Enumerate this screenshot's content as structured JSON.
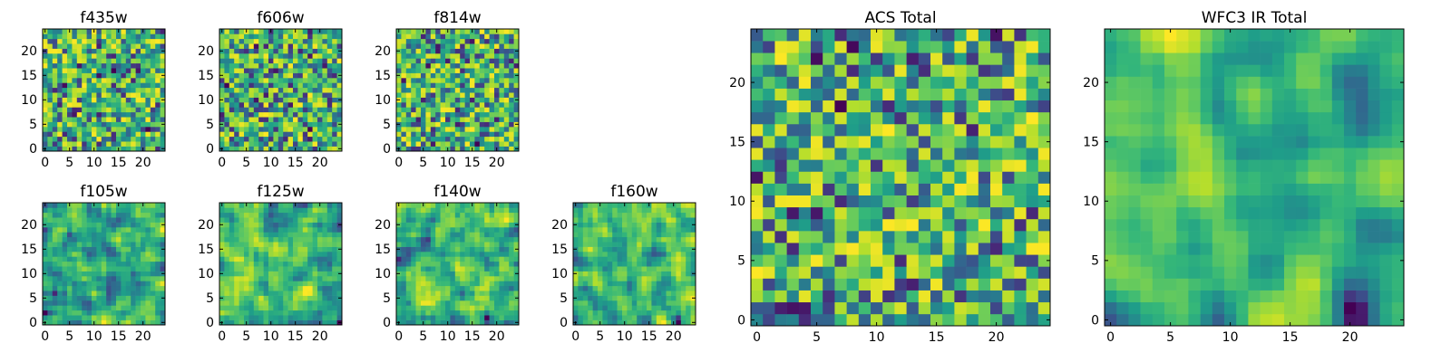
{
  "chart_data": [
    {
      "type": "heatmap",
      "title": "f435w",
      "seed": 11,
      "blur": 0,
      "x_ticks": [
        "0",
        "5",
        "10",
        "15",
        "20"
      ],
      "y_ticks": [
        "0",
        "5",
        "10",
        "15",
        "20"
      ],
      "xlim": [
        -0.5,
        24.5
      ],
      "ylim": [
        -0.5,
        24.5
      ],
      "grid": false,
      "colormap": "viridis"
    },
    {
      "type": "heatmap",
      "title": "f606w",
      "seed": 23,
      "blur": 0,
      "x_ticks": [
        "0",
        "5",
        "10",
        "15",
        "20"
      ],
      "y_ticks": [
        "0",
        "5",
        "10",
        "15",
        "20"
      ],
      "xlim": [
        -0.5,
        24.5
      ],
      "ylim": [
        -0.5,
        24.5
      ],
      "grid": false,
      "colormap": "viridis"
    },
    {
      "type": "heatmap",
      "title": "f814w",
      "seed": 37,
      "blur": 0,
      "x_ticks": [
        "0",
        "5",
        "10",
        "15",
        "20"
      ],
      "y_ticks": [
        "0",
        "5",
        "10",
        "15",
        "20"
      ],
      "xlim": [
        -0.5,
        24.5
      ],
      "ylim": [
        -0.5,
        24.5
      ],
      "grid": false,
      "colormap": "viridis"
    },
    {
      "type": "heatmap",
      "title": "f105w",
      "seed": 41,
      "blur": 1,
      "x_ticks": [
        "0",
        "5",
        "10",
        "15",
        "20"
      ],
      "y_ticks": [
        "0",
        "5",
        "10",
        "15",
        "20"
      ],
      "xlim": [
        -0.5,
        24.5
      ],
      "ylim": [
        -0.5,
        24.5
      ],
      "grid": false,
      "colormap": "viridis"
    },
    {
      "type": "heatmap",
      "title": "f125w",
      "seed": 53,
      "blur": 1,
      "x_ticks": [
        "0",
        "5",
        "10",
        "15",
        "20"
      ],
      "y_ticks": [
        "0",
        "5",
        "10",
        "15",
        "20"
      ],
      "xlim": [
        -0.5,
        24.5
      ],
      "ylim": [
        -0.5,
        24.5
      ],
      "grid": false,
      "colormap": "viridis"
    },
    {
      "type": "heatmap",
      "title": "f140w",
      "seed": 67,
      "blur": 1,
      "x_ticks": [
        "0",
        "5",
        "10",
        "15",
        "20"
      ],
      "y_ticks": [
        "0",
        "5",
        "10",
        "15",
        "20"
      ],
      "xlim": [
        -0.5,
        24.5
      ],
      "ylim": [
        -0.5,
        24.5
      ],
      "grid": false,
      "colormap": "viridis"
    },
    {
      "type": "heatmap",
      "title": "f160w",
      "seed": 79,
      "blur": 1,
      "x_ticks": [
        "0",
        "5",
        "10",
        "15",
        "20"
      ],
      "y_ticks": [
        "0",
        "5",
        "10",
        "15",
        "20"
      ],
      "xlim": [
        -0.5,
        24.5
      ],
      "ylim": [
        -0.5,
        24.5
      ],
      "grid": false,
      "colormap": "viridis"
    },
    {
      "type": "heatmap",
      "title": "ACS Total",
      "seed": 97,
      "blur": 0,
      "x_ticks": [
        "0",
        "5",
        "10",
        "15",
        "20"
      ],
      "y_ticks": [
        "0",
        "5",
        "10",
        "15",
        "20"
      ],
      "xlim": [
        -0.5,
        24.5
      ],
      "ylim": [
        -0.5,
        24.5
      ],
      "grid": false,
      "colormap": "viridis"
    },
    {
      "type": "heatmap",
      "title": "WFC3 IR Total",
      "seed": 131,
      "blur": 2,
      "x_ticks": [
        "0",
        "5",
        "10",
        "15",
        "20"
      ],
      "y_ticks": [
        "0",
        "5",
        "10",
        "15",
        "20"
      ],
      "xlim": [
        -0.5,
        24.5
      ],
      "ylim": [
        -0.5,
        24.5
      ],
      "grid": false,
      "colormap": "viridis"
    }
  ]
}
